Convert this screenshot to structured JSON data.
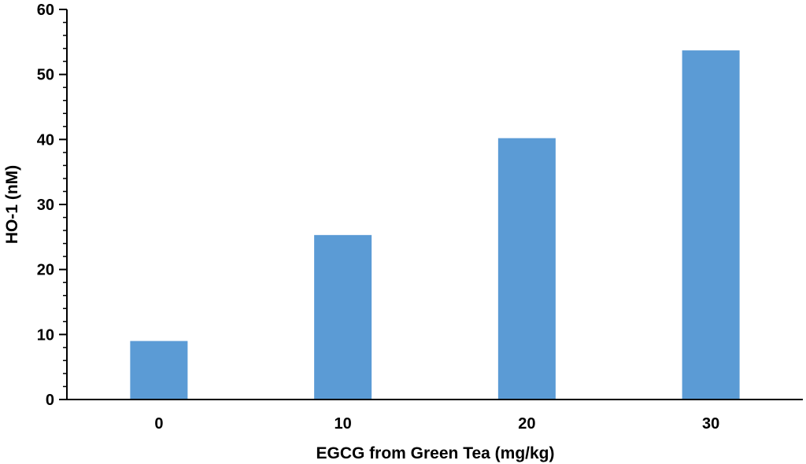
{
  "chart_data": {
    "type": "bar",
    "title": "",
    "xlabel": "EGCG from Green Tea (mg/kg)",
    "ylabel": "HO-1 (nM)",
    "categories": [
      "0",
      "10",
      "20",
      "30"
    ],
    "series": [
      {
        "values": [
          9,
          25.3,
          40.2,
          53.7
        ],
        "color": "#5b9bd5"
      }
    ],
    "ylim": [
      0,
      60
    ],
    "yticks": [
      0,
      10,
      20,
      30,
      40,
      50,
      60
    ],
    "y_minor_step": 2,
    "grid": false,
    "legend": "none"
  }
}
